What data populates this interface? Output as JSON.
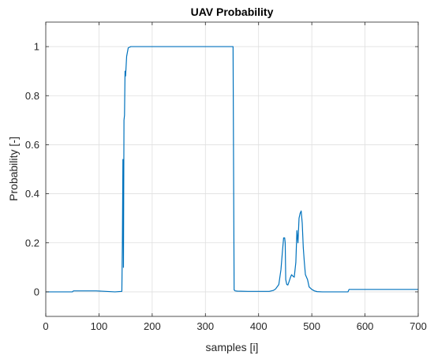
{
  "chart_data": {
    "type": "line",
    "title": "UAV Probability",
    "xlabel": "samples [i]",
    "ylabel": "Probability [-]",
    "xlim": [
      0,
      700
    ],
    "ylim": [
      -0.1,
      1.1
    ],
    "xticks": [
      0,
      100,
      200,
      300,
      400,
      500,
      600,
      700
    ],
    "xtick_labels": [
      "0",
      "100",
      "200",
      "300",
      "400",
      "500",
      "600",
      "700"
    ],
    "yticks": [
      0,
      0.2,
      0.4,
      0.6,
      0.8,
      1
    ],
    "ytick_labels": [
      "0",
      "0.2",
      "0.4",
      "0.6",
      "0.8",
      "1"
    ],
    "grid": true,
    "line_color": "#0072BD",
    "series": [
      {
        "x": [
          0,
          50,
          52,
          95,
          130,
          143,
          144,
          145,
          146,
          147,
          148,
          149,
          150,
          152,
          155,
          160,
          170,
          300,
          352,
          353,
          354,
          356,
          360,
          380,
          420,
          428,
          432,
          438,
          442,
          445,
          447,
          449,
          450,
          451,
          453,
          455,
          457,
          460,
          462,
          464,
          467,
          470,
          472,
          474,
          476,
          478,
          480,
          482,
          484,
          486,
          488,
          490,
          492,
          495,
          500,
          505,
          510,
          520,
          540,
          568,
          570,
          600,
          700
        ],
        "y": [
          0.0,
          0.0,
          0.004,
          0.004,
          0.0,
          0.002,
          0.2,
          0.54,
          0.1,
          0.7,
          0.72,
          0.9,
          0.88,
          0.96,
          0.995,
          1.0,
          1.0,
          1.0,
          1.0,
          0.5,
          0.008,
          0.004,
          0.003,
          0.002,
          0.002,
          0.006,
          0.012,
          0.03,
          0.09,
          0.17,
          0.22,
          0.22,
          0.2,
          0.05,
          0.03,
          0.028,
          0.04,
          0.06,
          0.07,
          0.065,
          0.06,
          0.12,
          0.25,
          0.2,
          0.3,
          0.32,
          0.33,
          0.28,
          0.18,
          0.12,
          0.07,
          0.06,
          0.05,
          0.02,
          0.01,
          0.004,
          0.001,
          0.0,
          0.0,
          0.0,
          0.01,
          0.01,
          0.01
        ]
      }
    ]
  }
}
